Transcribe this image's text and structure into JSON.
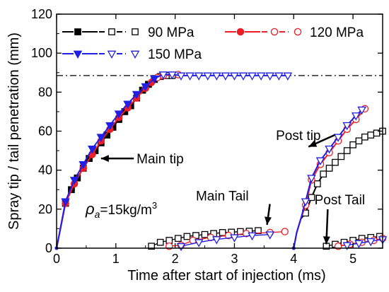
{
  "chart_data": {
    "type": "line",
    "xlabel": "Time after start of injection (ms)",
    "ylabel": "Spray tip / tail penetration (mm)",
    "xlim": [
      0,
      5.5
    ],
    "ylim": [
      0,
      120
    ],
    "xticks": [
      0,
      1,
      2,
      3,
      4,
      5
    ],
    "yticks": [
      0,
      20,
      40,
      60,
      80,
      100,
      120
    ],
    "reference_line_y": 88.5,
    "colors": {
      "90 MPa": "#000000",
      "120 MPa": "#ee1c24",
      "150 MPa": "#1f1fe6"
    },
    "series": [
      {
        "name": "90 MPa",
        "marker": "square",
        "main_tip": [
          [
            0.15,
            23
          ],
          [
            0.25,
            30
          ],
          [
            0.35,
            36
          ],
          [
            0.45,
            41
          ],
          [
            0.55,
            46
          ],
          [
            0.65,
            50
          ],
          [
            0.75,
            54
          ],
          [
            0.85,
            58
          ],
          [
            0.95,
            62
          ],
          [
            1.05,
            66
          ],
          [
            1.15,
            70
          ],
          [
            1.25,
            73
          ],
          [
            1.35,
            77
          ],
          [
            1.45,
            81
          ],
          [
            1.55,
            84
          ],
          [
            1.65,
            86.5
          ],
          [
            1.75,
            88
          ],
          [
            1.85,
            88.5
          ],
          [
            1.95,
            88.5
          ]
        ],
        "main_tail": [
          [
            1.6,
            1
          ],
          [
            1.75,
            3
          ],
          [
            1.9,
            4
          ],
          [
            2.05,
            5
          ],
          [
            2.2,
            6
          ],
          [
            2.35,
            6.5
          ],
          [
            2.5,
            7
          ],
          [
            2.65,
            7.5
          ],
          [
            2.8,
            8
          ],
          [
            2.95,
            8.2
          ],
          [
            3.1,
            8.5
          ],
          [
            3.25,
            8.7
          ],
          [
            3.4,
            9
          ]
        ],
        "post_tip": [
          [
            4.2,
            18
          ],
          [
            4.3,
            26
          ],
          [
            4.4,
            33
          ],
          [
            4.5,
            38
          ],
          [
            4.6,
            41
          ],
          [
            4.7,
            44
          ],
          [
            4.8,
            47
          ],
          [
            4.9,
            50
          ],
          [
            5.0,
            53
          ],
          [
            5.1,
            55
          ],
          [
            5.2,
            57
          ],
          [
            5.3,
            58
          ],
          [
            5.4,
            59
          ],
          [
            5.5,
            60
          ]
        ],
        "post_tail": [
          [
            4.55,
            1
          ],
          [
            4.7,
            2
          ],
          [
            4.85,
            3
          ],
          [
            5.0,
            4
          ],
          [
            5.15,
            5
          ],
          [
            5.3,
            5.5
          ],
          [
            5.45,
            6
          ]
        ]
      },
      {
        "name": "120 MPa",
        "marker": "circle",
        "main_tip": [
          [
            0.15,
            23
          ],
          [
            0.3,
            33
          ],
          [
            0.45,
            41
          ],
          [
            0.6,
            48
          ],
          [
            0.75,
            55
          ],
          [
            0.9,
            61
          ],
          [
            1.05,
            67
          ],
          [
            1.2,
            72
          ],
          [
            1.35,
            77
          ],
          [
            1.5,
            82
          ],
          [
            1.6,
            85
          ],
          [
            1.7,
            87.5
          ],
          [
            1.8,
            88.5
          ],
          [
            2.05,
            89
          ]
        ],
        "main_tail": [
          [
            1.9,
            1
          ],
          [
            2.1,
            1.5
          ],
          [
            2.3,
            4
          ],
          [
            2.6,
            5.5
          ],
          [
            2.9,
            6.5
          ],
          [
            3.2,
            7.5
          ],
          [
            3.6,
            8
          ],
          [
            3.85,
            8.5
          ]
        ],
        "post_tip": [
          [
            4.2,
            22
          ],
          [
            4.3,
            35
          ],
          [
            4.45,
            43
          ],
          [
            4.6,
            49
          ],
          [
            4.75,
            55
          ],
          [
            4.9,
            61
          ],
          [
            5.05,
            66
          ],
          [
            5.2,
            71.5
          ]
        ],
        "post_tail": [
          [
            4.75,
            1
          ],
          [
            4.95,
            2
          ],
          [
            5.15,
            3
          ],
          [
            5.35,
            4
          ],
          [
            5.5,
            5
          ]
        ]
      },
      {
        "name": "150 MPa",
        "marker": "triangle-down",
        "main_tip": [
          [
            0.15,
            24
          ],
          [
            0.3,
            35
          ],
          [
            0.45,
            43
          ],
          [
            0.6,
            51
          ],
          [
            0.75,
            57
          ],
          [
            0.9,
            63
          ],
          [
            1.05,
            69
          ],
          [
            1.2,
            74
          ],
          [
            1.35,
            79
          ],
          [
            1.5,
            83
          ],
          [
            1.65,
            87
          ],
          [
            1.8,
            89
          ],
          [
            1.95,
            89
          ],
          [
            2.1,
            88.5
          ],
          [
            2.25,
            88.5
          ],
          [
            2.4,
            88.5
          ],
          [
            2.55,
            88.5
          ],
          [
            2.7,
            88.5
          ],
          [
            2.85,
            88.5
          ],
          [
            3.0,
            88.5
          ],
          [
            3.15,
            88.5
          ],
          [
            3.3,
            88.5
          ],
          [
            3.45,
            88.5
          ],
          [
            3.6,
            88.5
          ],
          [
            3.75,
            88.5
          ],
          [
            3.9,
            88.5
          ]
        ],
        "main_tail": [
          [
            2.1,
            1
          ],
          [
            2.4,
            3
          ],
          [
            2.7,
            4.5
          ],
          [
            3.0,
            5.5
          ],
          [
            3.3,
            6.5
          ],
          [
            3.6,
            7
          ]
        ],
        "post_tip": [
          [
            4.2,
            24
          ],
          [
            4.3,
            36
          ],
          [
            4.45,
            45
          ],
          [
            4.6,
            51
          ],
          [
            4.75,
            57
          ],
          [
            4.9,
            63
          ],
          [
            5.05,
            68
          ],
          [
            5.15,
            71
          ]
        ],
        "post_tail": [
          [
            4.9,
            1.5
          ],
          [
            5.1,
            2.5
          ],
          [
            5.3,
            3.5
          ],
          [
            5.5,
            4.5
          ]
        ]
      }
    ],
    "annotations": [
      {
        "text": "Main tip",
        "x": 1.35,
        "y": 46,
        "arrow_to": [
          0.75,
          46
        ]
      },
      {
        "text": "Post tip",
        "x": 3.7,
        "y": 58,
        "arrow_to": [
          4.25,
          52
        ]
      },
      {
        "text": "Main Tail",
        "x": 2.35,
        "y": 27,
        "arrow_to": [
          3.55,
          12
        ]
      },
      {
        "text": "Post Tail",
        "x": 4.35,
        "y": 25,
        "arrow_to": [
          4.55,
          2
        ]
      }
    ],
    "ambient_label": {
      "rho": "ρ",
      "sub": "a",
      "body": "=15kg/m",
      "sup": "3"
    }
  }
}
